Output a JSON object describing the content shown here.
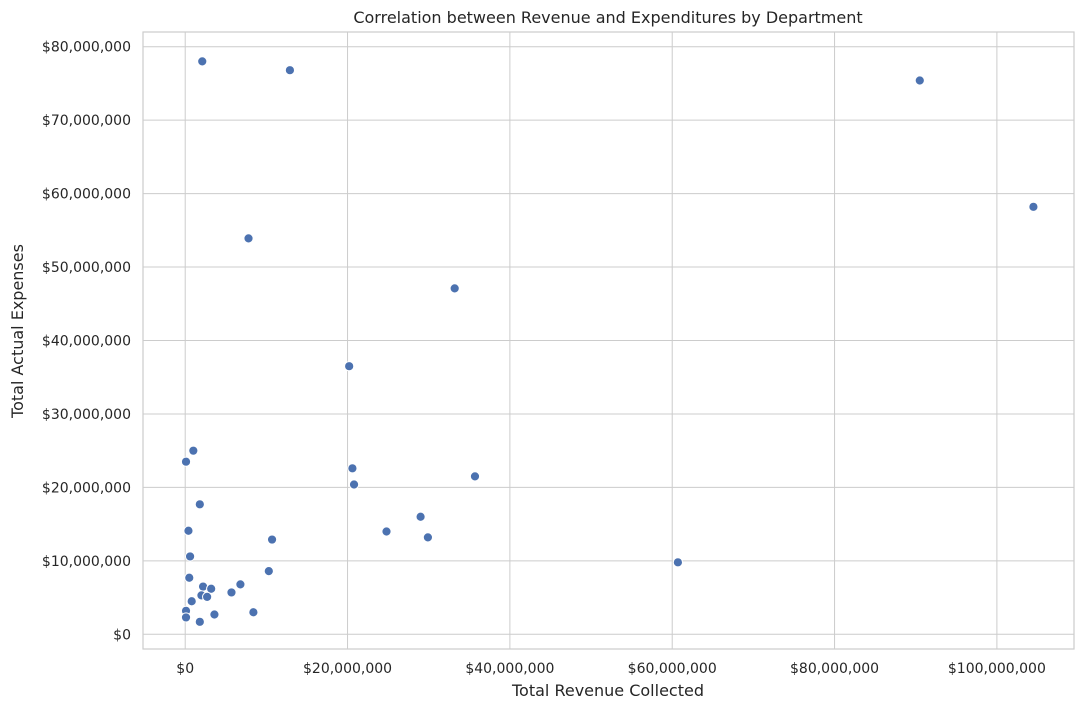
{
  "chart_data": {
    "type": "scatter",
    "title": "Correlation between Revenue and Expenditures by Department",
    "xlabel": "Total Revenue Collected",
    "ylabel": "Total Actual Expenses",
    "xlim": [
      -5200000,
      109500000
    ],
    "ylim": [
      -2000000,
      82000000
    ],
    "x_ticks": [
      0,
      20000000,
      40000000,
      60000000,
      80000000,
      100000000
    ],
    "x_tick_labels": [
      "$0",
      "$20,000,000",
      "$40,000,000",
      "$60,000,000",
      "$80,000,000",
      "$100,000,000"
    ],
    "y_ticks": [
      0,
      10000000,
      20000000,
      30000000,
      40000000,
      50000000,
      60000000,
      70000000,
      80000000
    ],
    "y_tick_labels": [
      "$0",
      "$10,000,000",
      "$20,000,000",
      "$30,000,000",
      "$40,000,000",
      "$50,000,000",
      "$60,000,000",
      "$70,000,000",
      "$80,000,000"
    ],
    "grid": true,
    "point_color": "#4c72b0",
    "points": [
      {
        "x": 2100000,
        "y": 78000000
      },
      {
        "x": 12900000,
        "y": 76800000
      },
      {
        "x": 90500000,
        "y": 75400000
      },
      {
        "x": 104500000,
        "y": 58200000
      },
      {
        "x": 7800000,
        "y": 53900000
      },
      {
        "x": 33200000,
        "y": 47100000
      },
      {
        "x": 20200000,
        "y": 36500000
      },
      {
        "x": 1000000,
        "y": 25000000
      },
      {
        "x": 100000,
        "y": 23500000
      },
      {
        "x": 20600000,
        "y": 22600000
      },
      {
        "x": 35700000,
        "y": 21500000
      },
      {
        "x": 20800000,
        "y": 20400000
      },
      {
        "x": 1800000,
        "y": 17700000
      },
      {
        "x": 29000000,
        "y": 16000000
      },
      {
        "x": 400000,
        "y": 14100000
      },
      {
        "x": 24800000,
        "y": 14000000
      },
      {
        "x": 29900000,
        "y": 13200000
      },
      {
        "x": 10700000,
        "y": 12900000
      },
      {
        "x": 600000,
        "y": 10600000
      },
      {
        "x": 60700000,
        "y": 9800000
      },
      {
        "x": 10300000,
        "y": 8600000
      },
      {
        "x": 500000,
        "y": 7700000
      },
      {
        "x": 6800000,
        "y": 6800000
      },
      {
        "x": 2200000,
        "y": 6500000
      },
      {
        "x": 3200000,
        "y": 6200000
      },
      {
        "x": 5700000,
        "y": 5700000
      },
      {
        "x": 2000000,
        "y": 5300000
      },
      {
        "x": 2700000,
        "y": 5100000
      },
      {
        "x": 800000,
        "y": 4500000
      },
      {
        "x": 100000,
        "y": 3200000
      },
      {
        "x": 8400000,
        "y": 3000000
      },
      {
        "x": 3600000,
        "y": 2700000
      },
      {
        "x": 100000,
        "y": 2300000
      },
      {
        "x": 1800000,
        "y": 1700000
      }
    ]
  }
}
